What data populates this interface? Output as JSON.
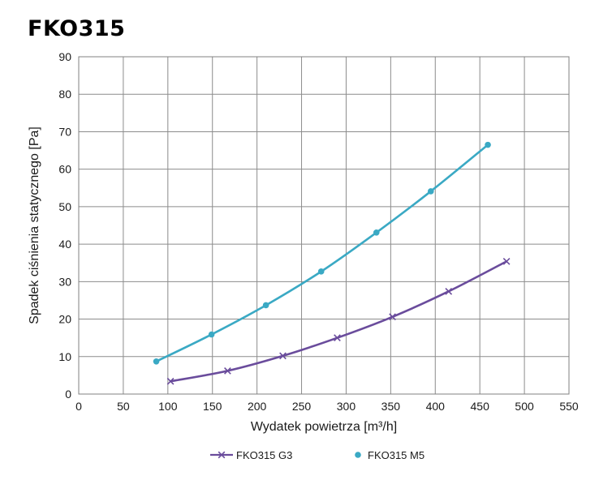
{
  "chart_data": {
    "type": "line",
    "title": "FKO315",
    "xlabel": "Wydatek powietrza [m³/h]",
    "ylabel": "Spadek ciśnienia statycznego [Pa]",
    "xlim": [
      0,
      550
    ],
    "ylim": [
      0,
      90
    ],
    "x_ticks": [
      0,
      50,
      100,
      150,
      200,
      250,
      300,
      350,
      400,
      450,
      500,
      550
    ],
    "y_ticks": [
      0,
      10,
      20,
      30,
      40,
      50,
      60,
      70,
      80,
      90
    ],
    "grid": true,
    "legend_position": "bottom",
    "series": [
      {
        "name": "FKO315 G3",
        "color": "#6a4c9c",
        "marker": "x",
        "x": [
          103,
          167,
          229,
          290,
          352,
          415,
          480
        ],
        "y": [
          3.4,
          6.2,
          10.2,
          15.0,
          20.6,
          27.4,
          35.4
        ]
      },
      {
        "name": "FKO315 M5",
        "color": "#3aa9c4",
        "marker": "circle",
        "x": [
          87,
          149,
          210,
          272,
          334,
          395,
          459
        ],
        "y": [
          8.7,
          15.9,
          23.7,
          32.7,
          43.1,
          54.1,
          66.5
        ]
      }
    ]
  }
}
